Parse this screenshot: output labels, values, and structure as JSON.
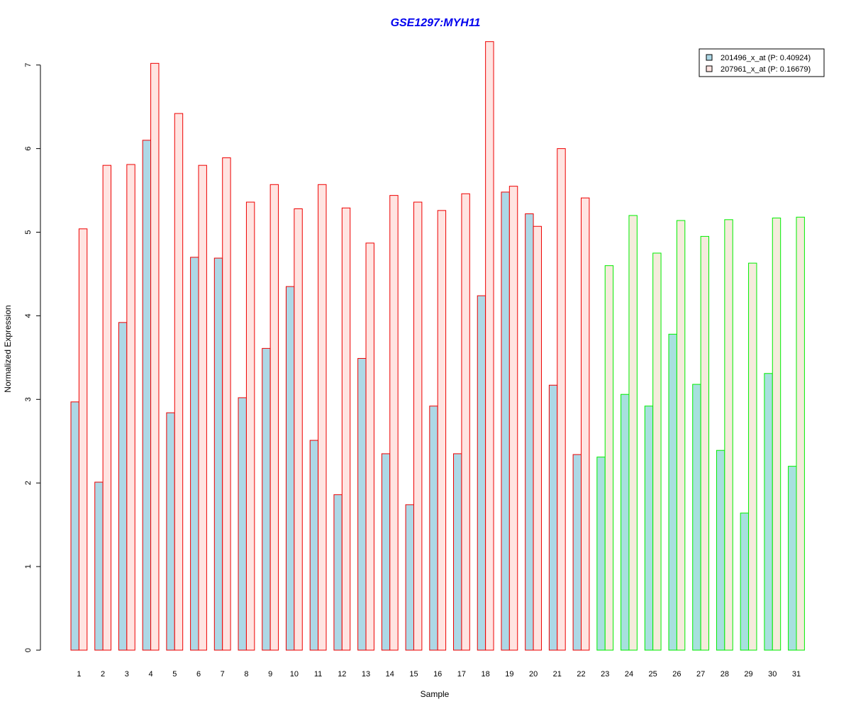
{
  "chart_data": {
    "type": "bar",
    "title": "GSE1297:MYH11",
    "xlabel": "Sample",
    "ylabel": "Normalized Expression",
    "ylim": [
      0,
      7.3
    ],
    "yticks": [
      0,
      1,
      2,
      3,
      4,
      5,
      6,
      7
    ],
    "grid": false,
    "legend_position": "top-right",
    "categories": [
      "1",
      "2",
      "3",
      "4",
      "5",
      "6",
      "7",
      "8",
      "9",
      "10",
      "11",
      "12",
      "13",
      "14",
      "15",
      "16",
      "17",
      "18",
      "19",
      "20",
      "21",
      "22",
      "23",
      "24",
      "25",
      "26",
      "27",
      "28",
      "29",
      "30",
      "31"
    ],
    "group_sizes": [
      22,
      9
    ],
    "series": [
      {
        "name": "201496_x_at (P: 0.40924)",
        "fill": "#add8e6",
        "values": [
          2.97,
          2.01,
          3.92,
          6.1,
          2.84,
          4.7,
          4.69,
          3.02,
          3.61,
          4.35,
          2.51,
          1.86,
          3.49,
          2.35,
          1.74,
          2.92,
          2.35,
          4.24,
          5.48,
          5.22,
          3.17,
          2.34,
          2.31,
          3.06,
          2.92,
          3.78,
          3.18,
          2.39,
          1.64,
          3.31,
          2.2
        ]
      },
      {
        "name": "207961_x_at (P: 0.16679)",
        "fill": "#ffe4e1",
        "values": [
          5.04,
          5.8,
          5.81,
          7.02,
          6.42,
          5.8,
          5.89,
          5.36,
          5.57,
          5.28,
          5.57,
          5.29,
          4.87,
          5.44,
          5.36,
          5.26,
          5.46,
          7.28,
          5.55,
          5.07,
          6.0,
          5.41,
          4.6,
          5.2,
          4.75,
          5.14,
          4.95,
          5.15,
          4.63,
          5.17,
          5.18
        ]
      }
    ],
    "colors": {
      "title": "#0000ee",
      "group1_border": "#ee0000",
      "group2_border": "#00ee00",
      "group2_pink_fill": "#f5ebdc",
      "group2_blue_fill": "#a7e0de"
    }
  }
}
